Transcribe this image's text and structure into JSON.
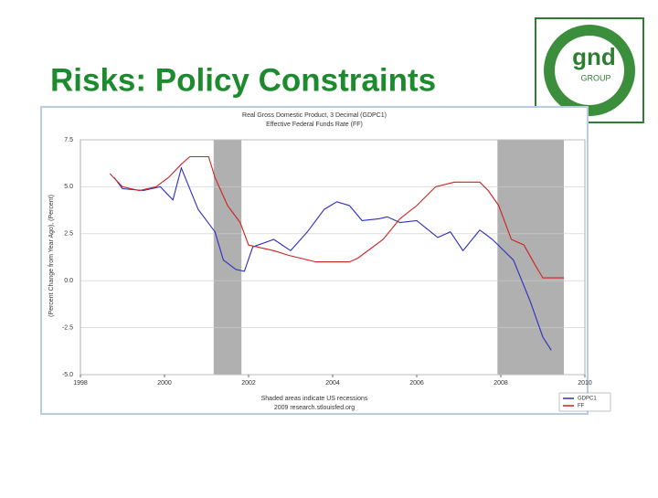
{
  "slide_title": "Risks: Policy Constraints",
  "logo": {
    "name": "gnd",
    "tagline": "GROUP"
  },
  "chart_data": {
    "type": "line",
    "title": "Real Gross Domestic Product, 3 Decimal (GDPC1)",
    "subtitle": "Effective Federal Funds Rate (FF)",
    "y_label": "(Percent Change from Year Ago), (Percent)",
    "notes": [
      "Shaded areas indicate US recessions",
      "2009 research.stlouisfed.org"
    ],
    "xlim": [
      1998,
      2010
    ],
    "xticks": [
      1998,
      2000,
      2002,
      2004,
      2006,
      2008,
      2010
    ],
    "ylim": [
      -5,
      7.5
    ],
    "yticks": [
      {
        "value": -5,
        "label": "-5.0"
      },
      -2.5,
      {
        "value": 0,
        "label": "0.0"
      },
      2.5,
      {
        "value": 5,
        "label": "5.0"
      },
      7.5
    ],
    "grid": true,
    "recessions": [
      [
        2001.17,
        2001.83
      ],
      [
        2007.92,
        2009.5
      ]
    ],
    "series": [
      {
        "name": "GDPC1",
        "color": "#2c2cc0",
        "x": [
          1998.8,
          1999.0,
          1999.5,
          1999.9,
          2000.2,
          2000.4,
          2000.8,
          2001.2,
          2001.4,
          2001.7,
          2001.9,
          2002.1,
          2002.6,
          2003.0,
          2003.4,
          2003.8,
          2004.1,
          2004.4,
          2004.7,
          2005.1,
          2005.3,
          2005.6,
          2006.0,
          2006.5,
          2006.8,
          2007.1,
          2007.5,
          2007.8,
          2008.3,
          2008.7,
          2009.0,
          2009.2
        ],
        "values": [
          5.5,
          4.9,
          4.8,
          5.0,
          4.3,
          6.0,
          3.8,
          2.6,
          1.1,
          0.6,
          0.5,
          1.8,
          2.2,
          1.6,
          2.6,
          3.8,
          4.2,
          4.0,
          3.2,
          3.3,
          3.4,
          3.1,
          3.2,
          2.3,
          2.6,
          1.6,
          2.7,
          2.2,
          1.1,
          -1.1,
          -3.0,
          -3.7
        ]
      },
      {
        "name": "FF",
        "color": "#d02020",
        "x": [
          1998.7,
          1999.0,
          1999.4,
          1999.8,
          2000.1,
          2000.4,
          2000.6,
          2001.05,
          2001.2,
          2001.5,
          2001.8,
          2002.0,
          2002.6,
          2002.95,
          2003.6,
          2004.4,
          2004.6,
          2005.2,
          2005.6,
          2006.0,
          2006.45,
          2006.9,
          2007.5,
          2007.7,
          2007.95,
          2008.25,
          2008.55,
          2008.8,
          2009.0,
          2009.5
        ],
        "values": [
          5.7,
          5.0,
          4.8,
          5.0,
          5.5,
          6.2,
          6.6,
          6.6,
          5.5,
          4.0,
          3.1,
          1.9,
          1.6,
          1.35,
          1.0,
          1.0,
          1.2,
          2.2,
          3.3,
          4.0,
          5.0,
          5.25,
          5.25,
          4.8,
          4.0,
          2.2,
          1.9,
          0.9,
          0.15,
          0.15
        ]
      }
    ]
  }
}
